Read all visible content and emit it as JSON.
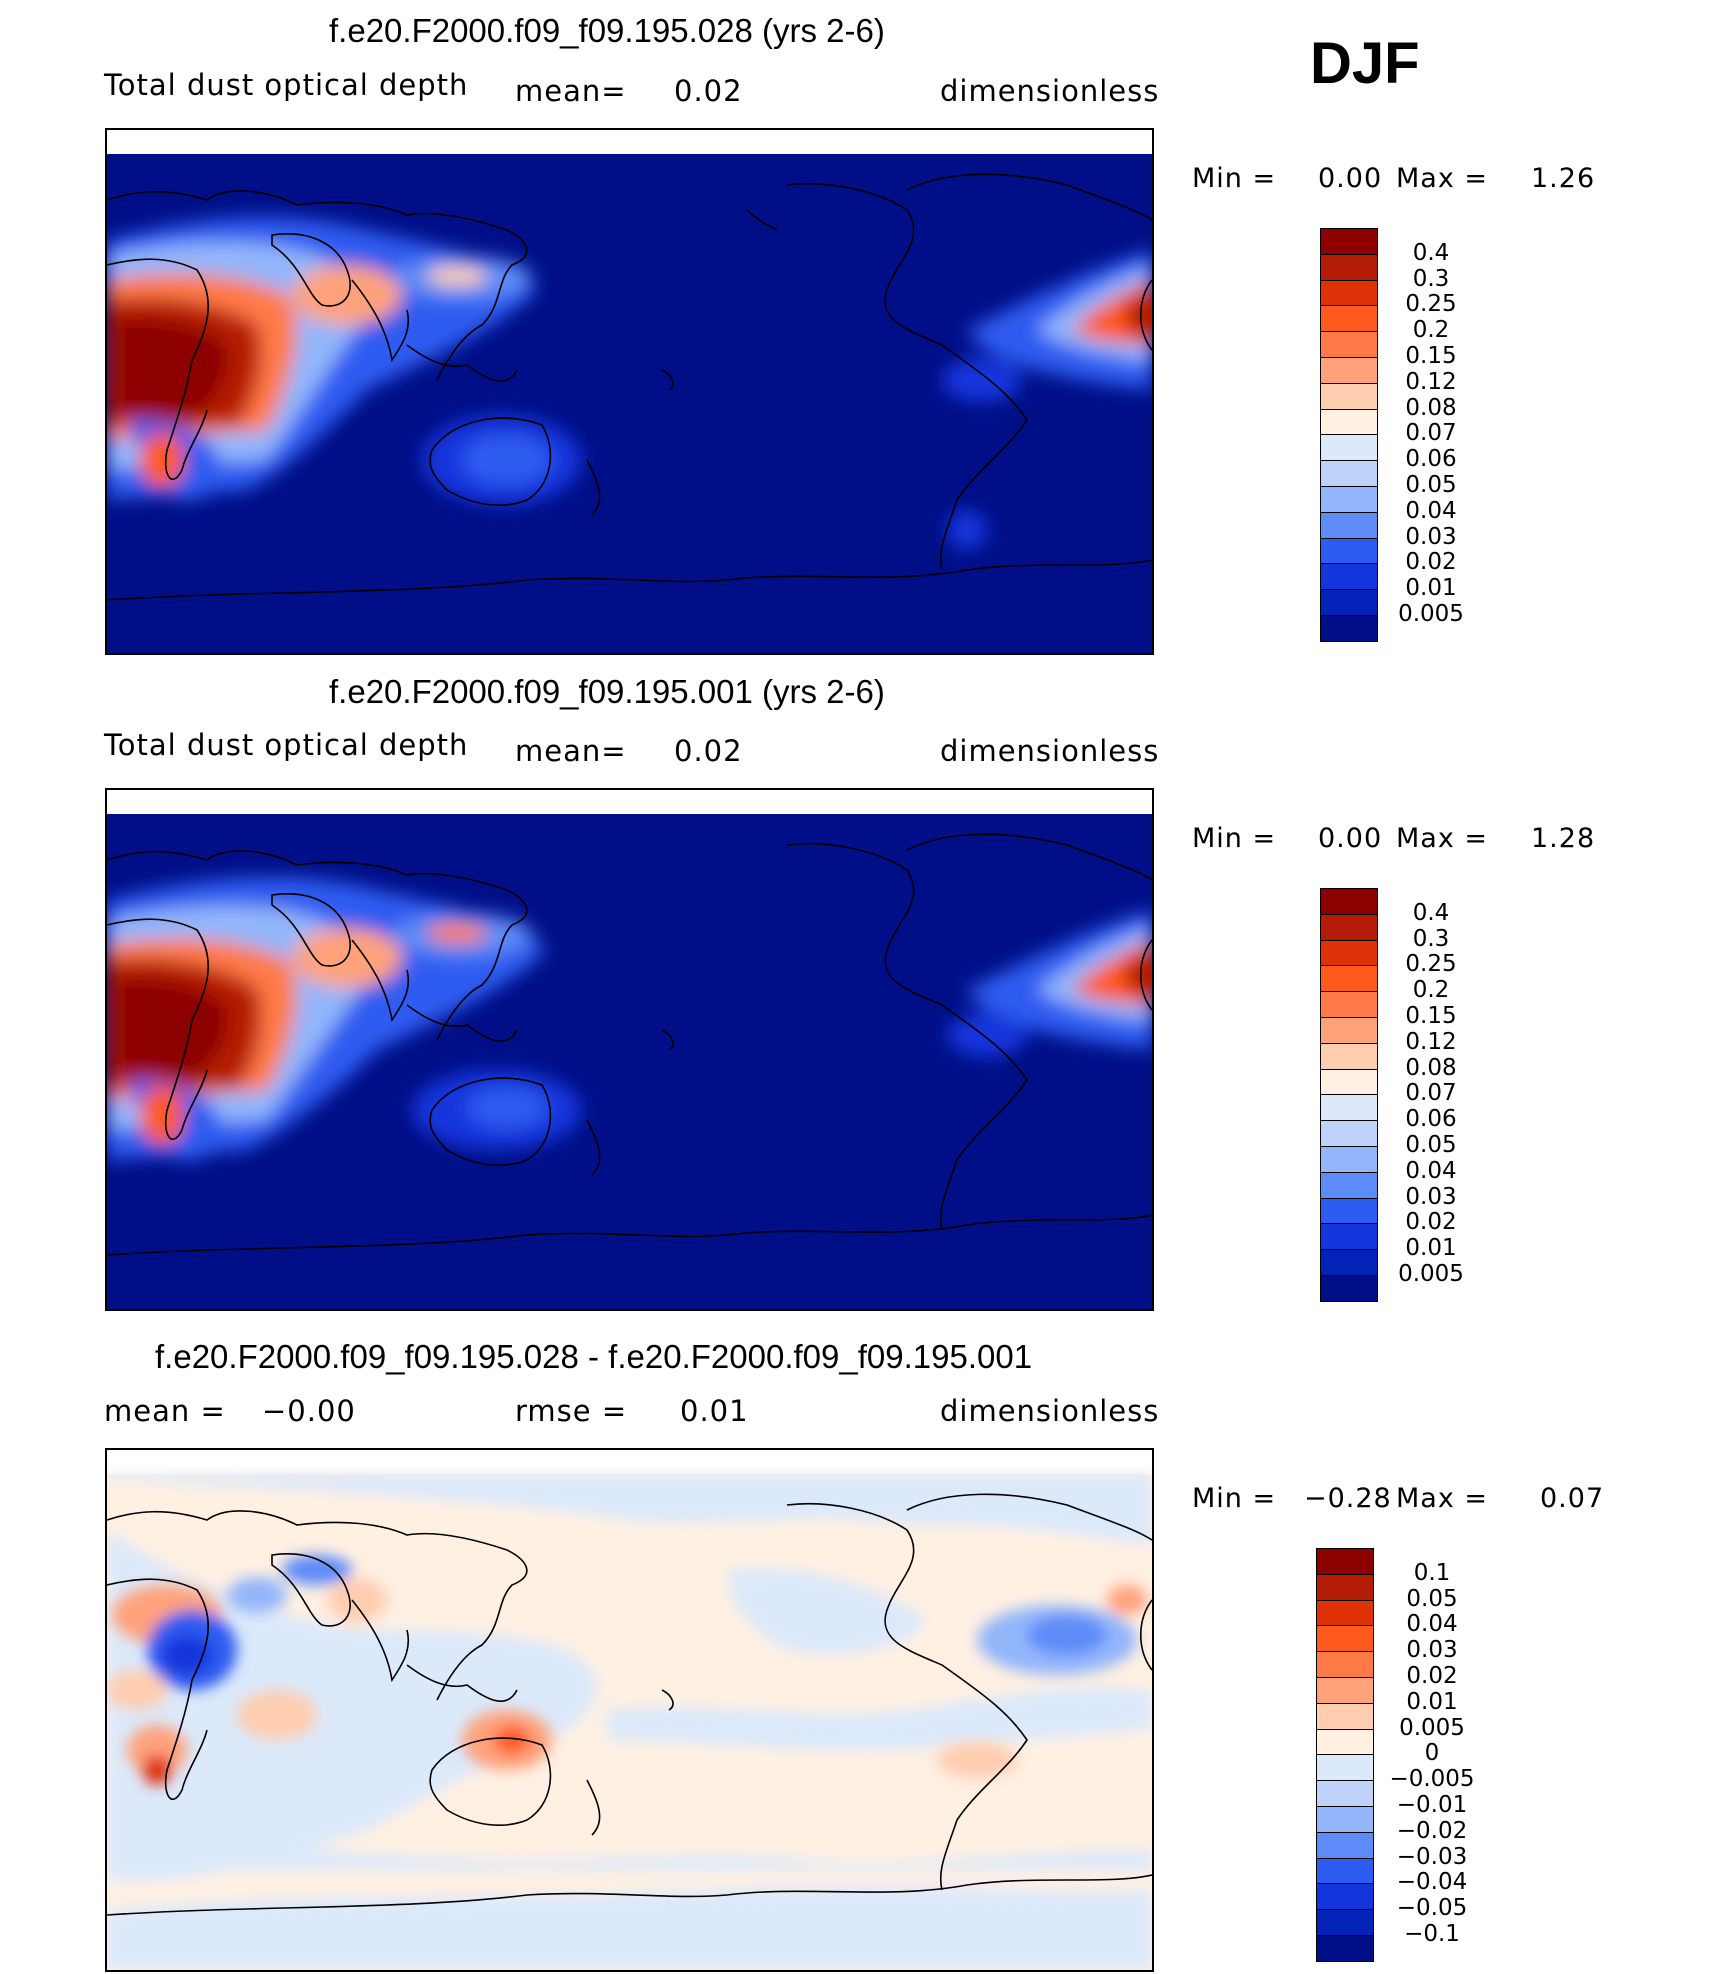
{
  "season": "DJF",
  "panels": [
    {
      "title": "f.e20.F2000.f09_f09.195.028 (yrs 2-6)",
      "left_label": "Total dust optical depth",
      "mid_label": "mean=",
      "mid_value": "0.02",
      "units": "dimensionless",
      "min_label": "Min =",
      "min_value": "0.00",
      "max_label": "Max =",
      "max_value": "1.26",
      "colorbar_labels": [
        "0.4",
        "0.3",
        "0.25",
        "0.2",
        "0.15",
        "0.12",
        "0.08",
        "0.07",
        "0.06",
        "0.05",
        "0.04",
        "0.03",
        "0.02",
        "0.01",
        "0.005"
      ],
      "colorbar_colors": [
        "#8c0000",
        "#b51c05",
        "#e03208",
        "#ff5a1e",
        "#ff7a46",
        "#ffa27c",
        "#ffcdb0",
        "#fff0e2",
        "#dbe9fb",
        "#bed2fa",
        "#93b6fb",
        "#5d8bf7",
        "#2d5cf0",
        "#1235dc",
        "#0322b8",
        "#000f88"
      ]
    },
    {
      "title": "f.e20.F2000.f09_f09.195.001 (yrs 2-6)",
      "left_label": "Total dust optical depth",
      "mid_label": "mean=",
      "mid_value": "0.02",
      "units": "dimensionless",
      "min_label": "Min =",
      "min_value": "0.00",
      "max_label": "Max =",
      "max_value": "1.28",
      "colorbar_labels": [
        "0.4",
        "0.3",
        "0.25",
        "0.2",
        "0.15",
        "0.12",
        "0.08",
        "0.07",
        "0.06",
        "0.05",
        "0.04",
        "0.03",
        "0.02",
        "0.01",
        "0.005"
      ],
      "colorbar_colors": [
        "#8c0000",
        "#b51c05",
        "#e03208",
        "#ff5a1e",
        "#ff7a46",
        "#ffa27c",
        "#ffcdb0",
        "#fff0e2",
        "#dbe9fb",
        "#bed2fa",
        "#93b6fb",
        "#5d8bf7",
        "#2d5cf0",
        "#1235dc",
        "#0322b8",
        "#000f88"
      ]
    },
    {
      "title": "f.e20.F2000.f09_f09.195.028 - f.e20.F2000.f09_f09.195.001",
      "left_label": "mean =",
      "left_value": "−0.00",
      "mid_label": "rmse =",
      "mid_value": "0.01",
      "units": "dimensionless",
      "min_label": "Min =",
      "min_value": "−0.28",
      "max_label": "Max =",
      "max_value": "0.07",
      "colorbar_labels": [
        "0.1",
        "0.05",
        "0.04",
        "0.03",
        "0.02",
        "0.01",
        "0.005",
        "0",
        "−0.005",
        "−0.01",
        "−0.02",
        "−0.03",
        "−0.04",
        "−0.05",
        "−0.1"
      ],
      "colorbar_colors": [
        "#8c0000",
        "#b51c05",
        "#e03208",
        "#ff5a1e",
        "#ff7a46",
        "#ffa27c",
        "#ffcdb0",
        "#fff0e2",
        "#dbe9fb",
        "#bed2fa",
        "#93b6fb",
        "#5d8bf7",
        "#2d5cf0",
        "#1235dc",
        "#0322b8",
        "#000f88"
      ]
    }
  ],
  "chart_data": [
    {
      "type": "heatmap",
      "title": "f.e20.F2000.f09_f09.195.028 (yrs 2-6)",
      "variable": "Total dust optical depth",
      "units": "dimensionless",
      "mean": 0.02,
      "min": 0.0,
      "max": 1.26,
      "levels": [
        0.005,
        0.01,
        0.02,
        0.03,
        0.04,
        0.05,
        0.06,
        0.07,
        0.08,
        0.12,
        0.15,
        0.2,
        0.25,
        0.3,
        0.4
      ]
    },
    {
      "type": "heatmap",
      "title": "f.e20.F2000.f09_f09.195.001 (yrs 2-6)",
      "variable": "Total dust optical depth",
      "units": "dimensionless",
      "mean": 0.02,
      "min": 0.0,
      "max": 1.28,
      "levels": [
        0.005,
        0.01,
        0.02,
        0.03,
        0.04,
        0.05,
        0.06,
        0.07,
        0.08,
        0.12,
        0.15,
        0.2,
        0.25,
        0.3,
        0.4
      ]
    },
    {
      "type": "heatmap",
      "title": "f.e20.F2000.f09_f09.195.028 - f.e20.F2000.f09_f09.195.001",
      "units": "dimensionless",
      "mean": -0.0,
      "rmse": 0.01,
      "min": -0.28,
      "max": 0.07,
      "levels": [
        -0.1,
        -0.05,
        -0.04,
        -0.03,
        -0.02,
        -0.01,
        -0.005,
        0,
        0.005,
        0.01,
        0.02,
        0.03,
        0.04,
        0.05,
        0.1
      ]
    }
  ]
}
